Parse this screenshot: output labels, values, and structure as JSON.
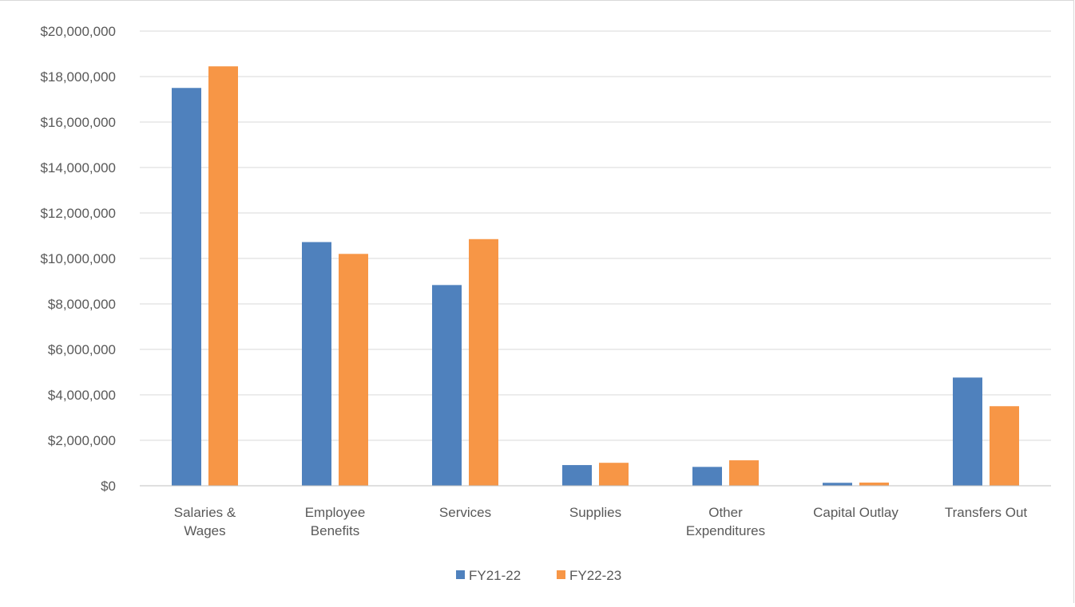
{
  "chart_data": {
    "type": "bar",
    "title": "",
    "xlabel": "",
    "ylabel": "",
    "categories": [
      [
        "Salaries &",
        "Wages"
      ],
      [
        "Employee",
        "Benefits"
      ],
      [
        "Services"
      ],
      [
        "Supplies"
      ],
      [
        "Other",
        "Expenditures"
      ],
      [
        "Capital Outlay"
      ],
      [
        "Transfers Out"
      ]
    ],
    "series": [
      {
        "name": "FY21-22",
        "color": "#4f81bd",
        "values": [
          17500000,
          10720000,
          8830000,
          910000,
          830000,
          130000,
          4760000
        ]
      },
      {
        "name": "FY22-23",
        "color": "#f79646",
        "values": [
          18450000,
          10200000,
          10850000,
          1010000,
          1120000,
          140000,
          3500000
        ]
      }
    ],
    "ylim": [
      0,
      20000000
    ],
    "yticks": [
      0,
      2000000,
      4000000,
      6000000,
      8000000,
      10000000,
      12000000,
      14000000,
      16000000,
      18000000,
      20000000
    ],
    "ytick_labels": [
      "$0",
      "$2,000,000",
      "$4,000,000",
      "$6,000,000",
      "$8,000,000",
      "$10,000,000",
      "$12,000,000",
      "$14,000,000",
      "$16,000,000",
      "$18,000,000",
      "$20,000,000"
    ],
    "grid": true,
    "legend_position": "bottom-center",
    "gridline_color": "#d9d9d9",
    "axis_color": "#bfbfbf",
    "text_color": "#595959"
  }
}
